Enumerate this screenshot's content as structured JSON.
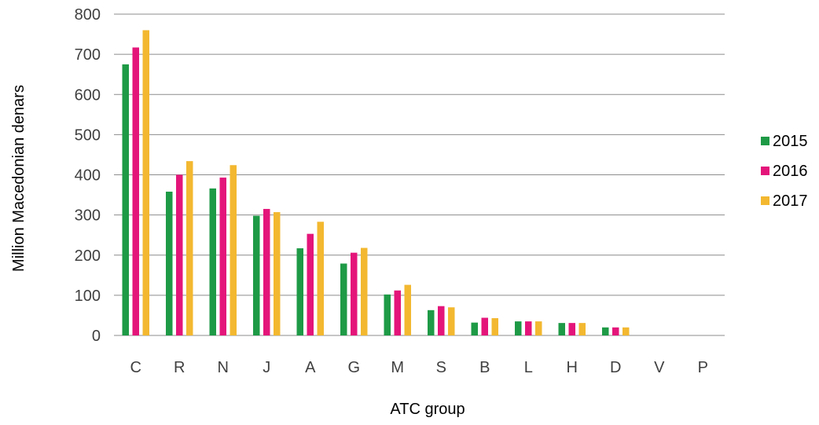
{
  "chart_data": {
    "type": "bar",
    "title": "",
    "xlabel": "ATC group",
    "ylabel": "Million Macedonian denars",
    "categories": [
      "C",
      "R",
      "N",
      "J",
      "A",
      "G",
      "M",
      "S",
      "B",
      "L",
      "H",
      "D",
      "V",
      "P"
    ],
    "series": [
      {
        "name": "2015",
        "color": "#1e9a46",
        "values": [
          675,
          358,
          366,
          298,
          217,
          179,
          102,
          63,
          32,
          35,
          31,
          20,
          0,
          0
        ]
      },
      {
        "name": "2016",
        "color": "#e4157a",
        "values": [
          717,
          400,
          393,
          315,
          253,
          206,
          112,
          73,
          44,
          35,
          31,
          20,
          0,
          0
        ]
      },
      {
        "name": "2017",
        "color": "#f3b830",
        "values": [
          760,
          434,
          424,
          307,
          283,
          218,
          126,
          70,
          43,
          35,
          31,
          20,
          0,
          0
        ]
      }
    ],
    "ylim": [
      0,
      800
    ],
    "yticks": [
      0,
      100,
      200,
      300,
      400,
      500,
      600,
      700,
      800
    ],
    "grid": true,
    "legend_position": "right"
  }
}
